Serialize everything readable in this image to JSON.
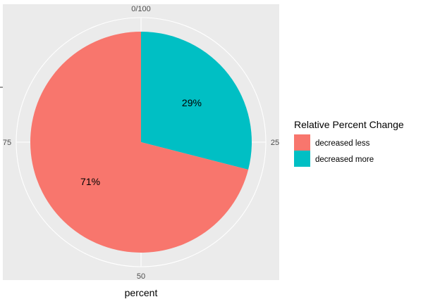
{
  "chart_data": {
    "type": "pie",
    "xlabel": "percent",
    "ylabel": "",
    "legend": {
      "title": "Relative Percent Change",
      "placement": "right"
    },
    "slices": [
      {
        "name": "decreased more",
        "value": 29,
        "label": "29%",
        "color": "#00BFC4"
      },
      {
        "name": "decreased less",
        "value": 71,
        "label": "71%",
        "color": "#F8766D"
      }
    ],
    "legend_order": [
      "decreased less",
      "decreased more"
    ],
    "theta_ticks": [
      {
        "value": 0,
        "label": "0/100"
      },
      {
        "value": 25,
        "label": "25"
      },
      {
        "value": 50,
        "label": "50"
      },
      {
        "value": 75,
        "label": "75"
      }
    ],
    "theta_range": [
      0,
      100
    ],
    "panel_background": "#EBEBEB",
    "grid_color": "#FFFFFF",
    "grid": true
  }
}
